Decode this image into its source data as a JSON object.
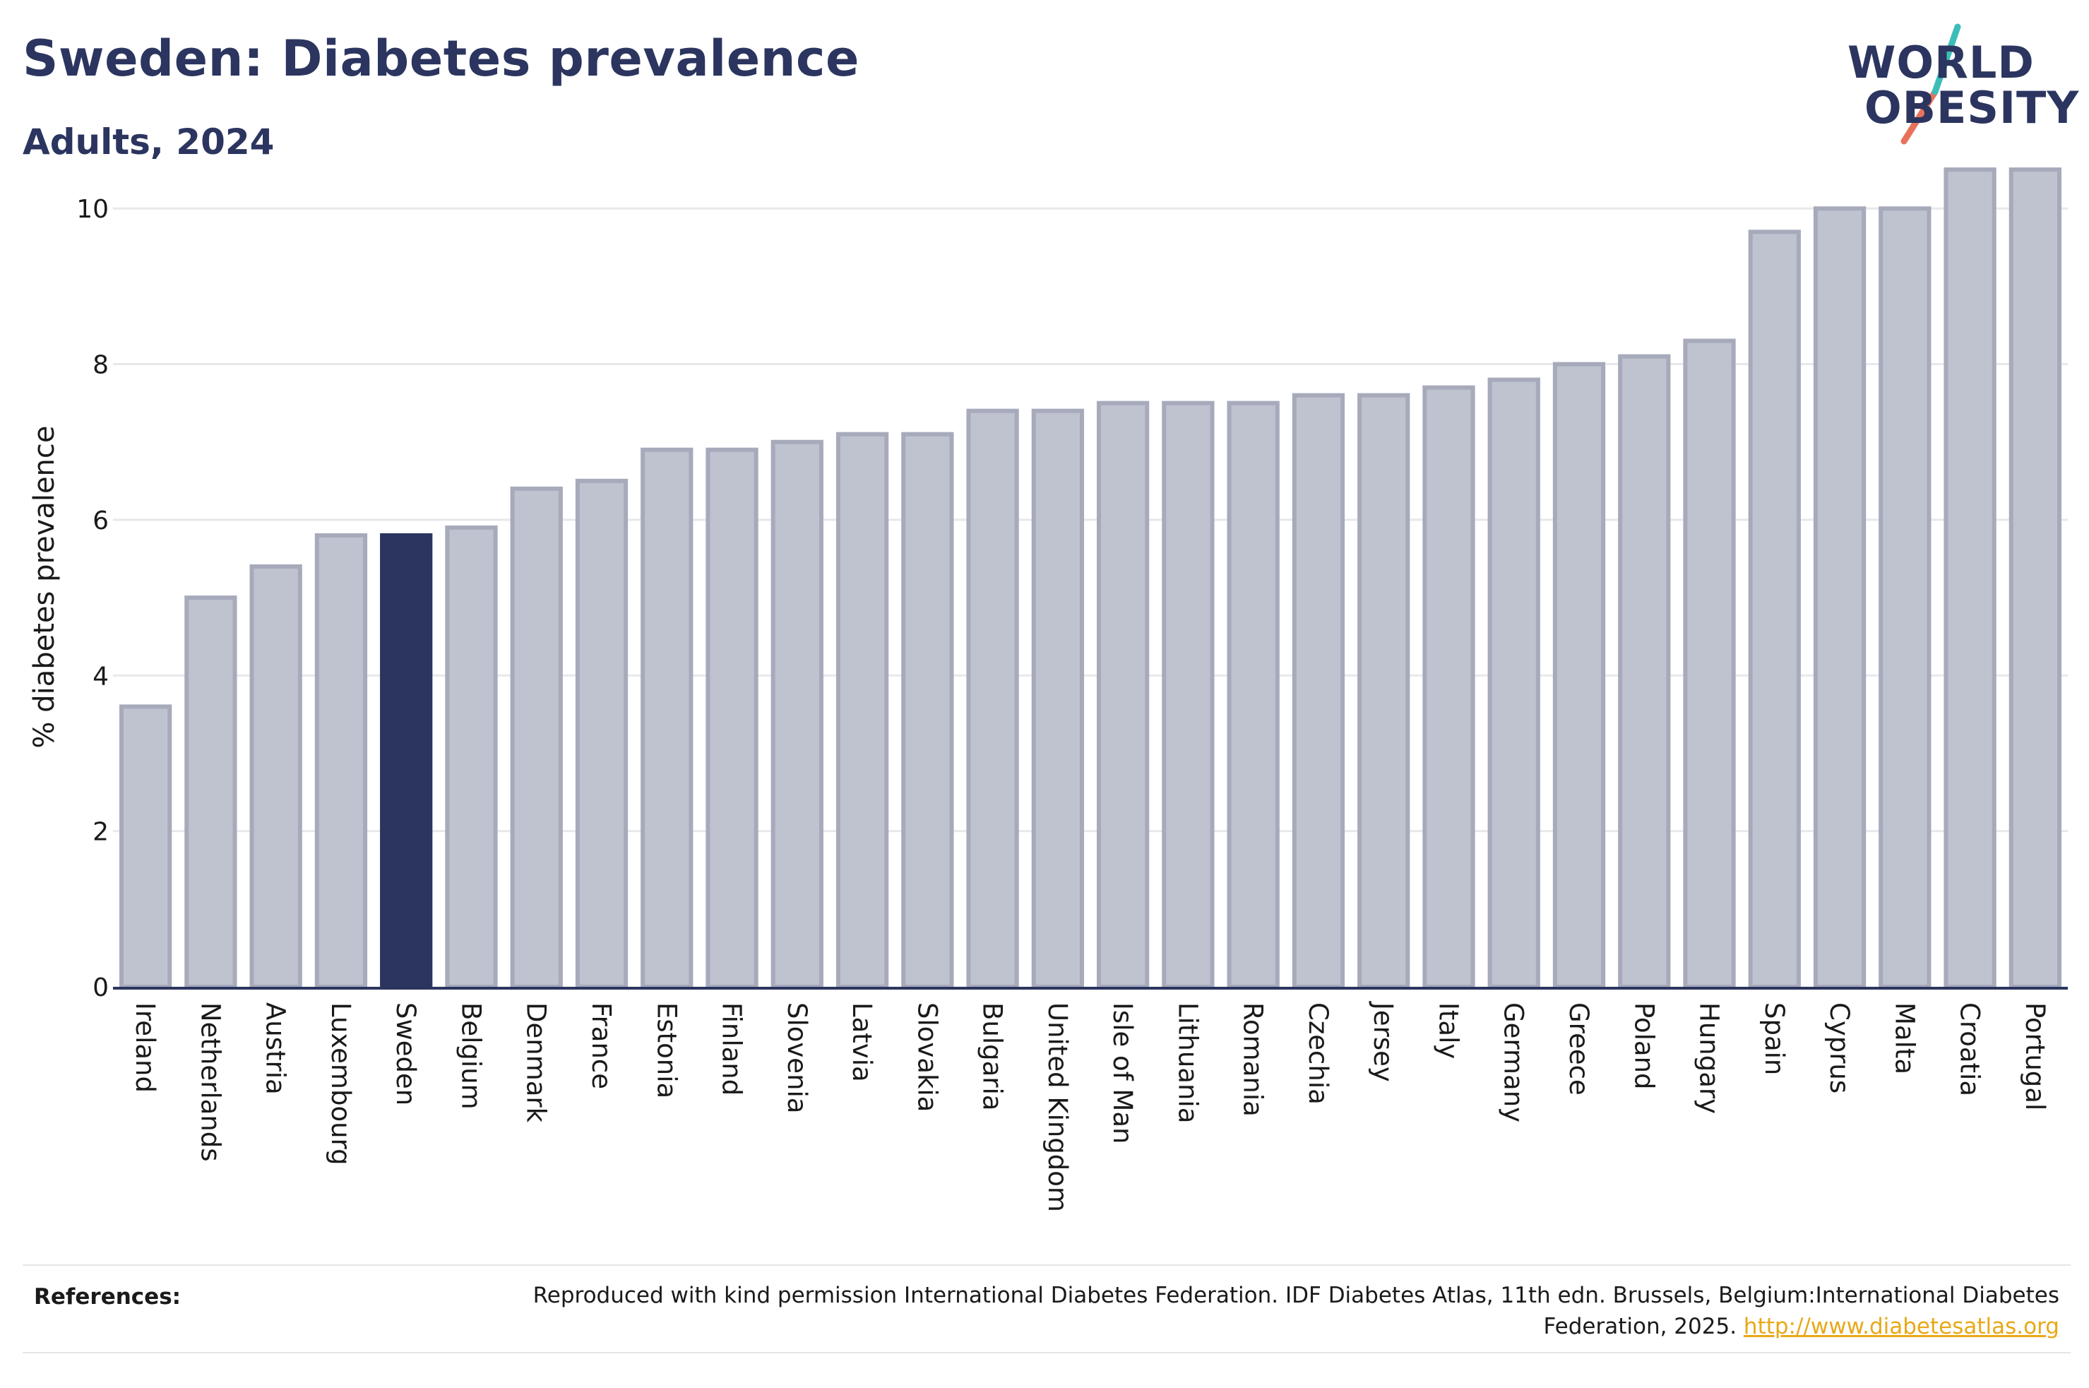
{
  "title": "Sweden: Diabetes prevalence",
  "subtitle": "Adults, 2024",
  "logo": {
    "line1": "WORLD",
    "line2": "OBESITY"
  },
  "colors": {
    "default_bar": "#bfc2cf",
    "default_bar_edge": "#a6aabb",
    "highlight_bar": "#2b355f",
    "text_dark": "#2b355f",
    "link": "#e8a817",
    "logo_teal": "#3dbdb8",
    "logo_coral": "#e8715b"
  },
  "chart_data": {
    "type": "bar",
    "ylabel": "% diabetes prevalence",
    "ylim": [
      0,
      11
    ],
    "yticks": [
      0,
      2,
      4,
      6,
      8,
      10
    ],
    "grid": true,
    "highlight": "Sweden",
    "categories": [
      "Ireland",
      "Netherlands",
      "Austria",
      "Luxembourg",
      "Sweden",
      "Belgium",
      "Denmark",
      "France",
      "Estonia",
      "Finland",
      "Slovenia",
      "Latvia",
      "Slovakia",
      "Bulgaria",
      "United Kingdom",
      "Isle of Man",
      "Lithuania",
      "Romania",
      "Czechia",
      "Jersey",
      "Italy",
      "Germany",
      "Greece",
      "Poland",
      "Hungary",
      "Spain",
      "Cyprus",
      "Malta",
      "Croatia",
      "Portugal"
    ],
    "values": [
      3.6,
      5.0,
      5.4,
      5.8,
      5.8,
      5.9,
      6.4,
      6.5,
      6.9,
      6.9,
      7.0,
      7.1,
      7.1,
      7.4,
      7.4,
      7.5,
      7.5,
      7.5,
      7.6,
      7.6,
      7.7,
      7.8,
      8.0,
      8.1,
      8.3,
      9.7,
      10.0,
      10.0,
      10.5,
      10.5
    ]
  },
  "references": {
    "label": "References:",
    "text": "Reproduced with kind permission International Diabetes Federation. IDF Diabetes Atlas, 11th edn. Brussels, Belgium:International Diabetes Federation, 2025.",
    "link": "http://www.diabetesatlas.org"
  }
}
